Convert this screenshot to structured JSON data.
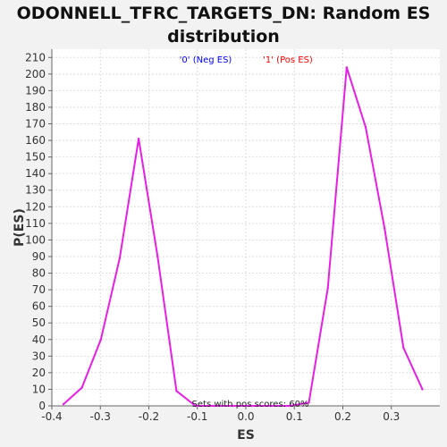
{
  "chart_data": {
    "type": "line",
    "title_line1": "ODONNELL_TFRC_TARGETS_DN: Random ES",
    "title_line2": "distribution",
    "xlabel": "ES",
    "ylabel": "P(ES)",
    "xlim": [
      -0.4,
      0.4
    ],
    "ylim": [
      0,
      215
    ],
    "xticks": [
      "-0.4",
      "-0.3",
      "-0.2",
      "-0.1",
      "0.0",
      "0.1",
      "0.2",
      "0.3"
    ],
    "xtick_values": [
      -0.4,
      -0.3,
      -0.2,
      -0.1,
      0.0,
      0.1,
      0.2,
      0.3
    ],
    "yticks": [
      "0",
      "10",
      "20",
      "30",
      "40",
      "50",
      "60",
      "70",
      "80",
      "90",
      "100",
      "110",
      "120",
      "130",
      "140",
      "150",
      "160",
      "170",
      "180",
      "190",
      "200",
      "210"
    ],
    "ytick_values": [
      0,
      10,
      20,
      30,
      40,
      50,
      60,
      70,
      80,
      90,
      100,
      110,
      120,
      130,
      140,
      150,
      160,
      170,
      180,
      190,
      200,
      210
    ],
    "grid": true,
    "legend": [
      {
        "label": "'0' (Neg ES)",
        "color": "#0000ff"
      },
      {
        "label": "'1' (Pos ES)",
        "color": "#ff0000"
      }
    ],
    "annotation": "Sets with pos scores: 60%",
    "series": [
      {
        "color": "#e61ee6",
        "x": [
          -0.376,
          -0.338,
          -0.299,
          -0.26,
          -0.221,
          -0.182,
          -0.143,
          -0.104,
          -0.065,
          -0.026,
          0.013,
          0.052,
          0.091,
          0.13,
          0.169,
          0.208,
          0.247,
          0.286,
          0.325,
          0.364
        ],
        "y": [
          1,
          11,
          40,
          89,
          161,
          90,
          9,
          0,
          0,
          0,
          0,
          0,
          0,
          2,
          71,
          204,
          168,
          107,
          35,
          10
        ]
      }
    ]
  }
}
